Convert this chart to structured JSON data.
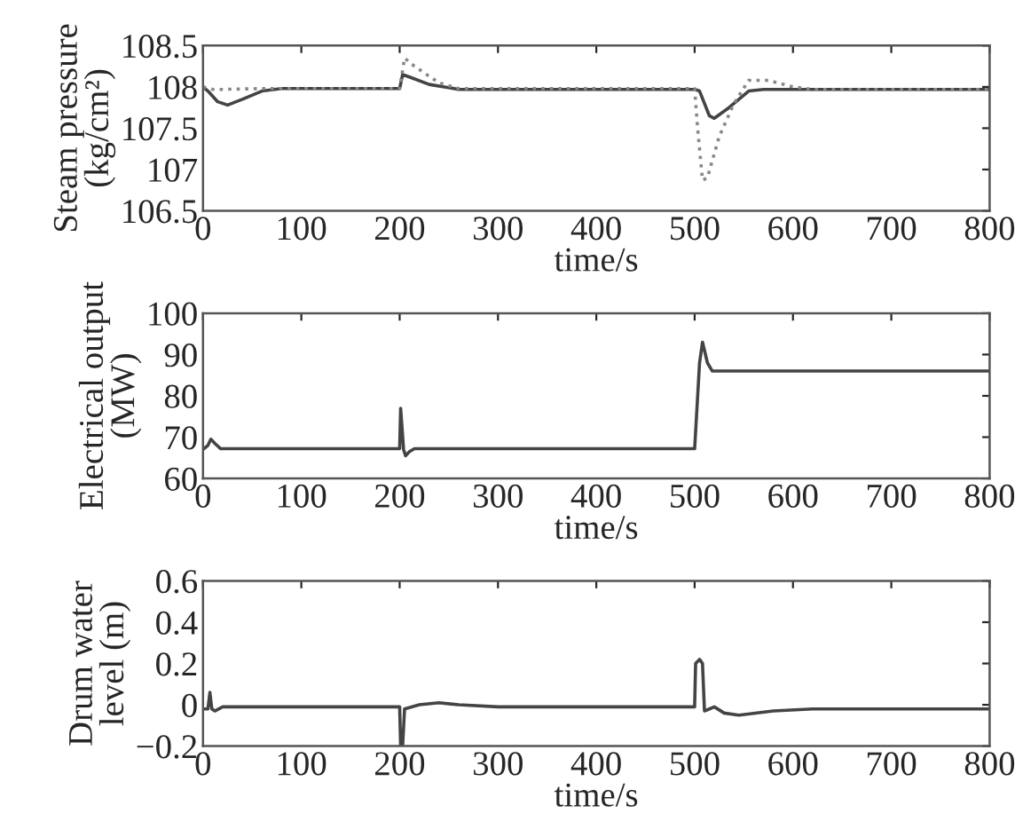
{
  "chart_data": [
    {
      "type": "line",
      "xlabel": "time/s",
      "ylabel": "Steam pressure\n(kg/cm²)",
      "xlim": [
        0,
        800
      ],
      "xticks": [
        0,
        100,
        200,
        300,
        400,
        500,
        600,
        700,
        800
      ],
      "ylim": [
        106.5,
        108.5
      ],
      "yticks": [
        106.5,
        107,
        107.5,
        108,
        108.5
      ],
      "grid": false,
      "series": [
        {
          "color": "#444444",
          "line_style": "solid",
          "x": [
            0,
            5,
            15,
            25,
            40,
            60,
            80,
            200,
            203,
            210,
            230,
            260,
            500,
            505,
            515,
            520,
            535,
            555,
            570,
            800
          ],
          "values": [
            108,
            107.95,
            107.82,
            107.78,
            107.85,
            107.95,
            107.98,
            107.98,
            108.15,
            108.12,
            108.03,
            107.97,
            107.97,
            107.95,
            107.65,
            107.62,
            107.75,
            107.95,
            107.97,
            107.97
          ]
        },
        {
          "color": "#888888",
          "line_style": "dotted",
          "x": [
            0,
            10,
            20,
            60,
            80,
            200,
            205,
            215,
            240,
            260,
            500,
            503,
            508,
            513,
            525,
            540,
            555,
            575,
            600,
            620,
            800
          ],
          "values": [
            108,
            107.97,
            107.97,
            107.98,
            107.98,
            107.98,
            108.35,
            108.25,
            108.05,
            107.98,
            107.98,
            107.5,
            106.87,
            106.9,
            107.4,
            107.8,
            108.08,
            108.08,
            108.0,
            107.97,
            107.97
          ]
        }
      ]
    },
    {
      "type": "line",
      "xlabel": "time/s",
      "ylabel": "Electrical output\n(MW)",
      "xlim": [
        0,
        800
      ],
      "xticks": [
        0,
        100,
        200,
        300,
        400,
        500,
        600,
        700,
        800
      ],
      "ylim": [
        60,
        100
      ],
      "yticks": [
        60,
        70,
        80,
        90,
        100
      ],
      "grid": false,
      "series": [
        {
          "color": "#444444",
          "line_style": "solid",
          "x": [
            0,
            5,
            8,
            12,
            18,
            200,
            201,
            204,
            206,
            210,
            215,
            500,
            505,
            508,
            513,
            518,
            800
          ],
          "values": [
            67,
            68,
            69.5,
            68.5,
            67.2,
            67.2,
            77,
            67,
            65.5,
            66.5,
            67.2,
            67.2,
            88,
            93,
            88,
            86,
            86
          ]
        }
      ]
    },
    {
      "type": "line",
      "xlabel": "time/s",
      "ylabel": "Drum water\nlevel (m)",
      "xlim": [
        0,
        800
      ],
      "xticks": [
        0,
        100,
        200,
        300,
        400,
        500,
        600,
        700,
        800
      ],
      "ylim": [
        -0.2,
        0.6
      ],
      "yticks": [
        {
          "value": -0.2,
          "label": "−0.2"
        },
        0,
        0.2,
        0.4,
        0.6
      ],
      "grid": false,
      "series": [
        {
          "color": "#444444",
          "line_style": "solid",
          "x": [
            0,
            5,
            7,
            9,
            12,
            20,
            200,
            201,
            203,
            205,
            220,
            240,
            260,
            300,
            500,
            501,
            505,
            508,
            510,
            515,
            520,
            530,
            545,
            580,
            620,
            800
          ],
          "values": [
            -0.02,
            -0.02,
            0.06,
            -0.02,
            -0.03,
            -0.01,
            -0.01,
            -0.2,
            -0.2,
            -0.02,
            0,
            0.01,
            0,
            -0.01,
            -0.01,
            0.2,
            0.22,
            0.2,
            -0.03,
            -0.02,
            -0.01,
            -0.04,
            -0.05,
            -0.03,
            -0.02,
            -0.02
          ]
        }
      ]
    }
  ]
}
